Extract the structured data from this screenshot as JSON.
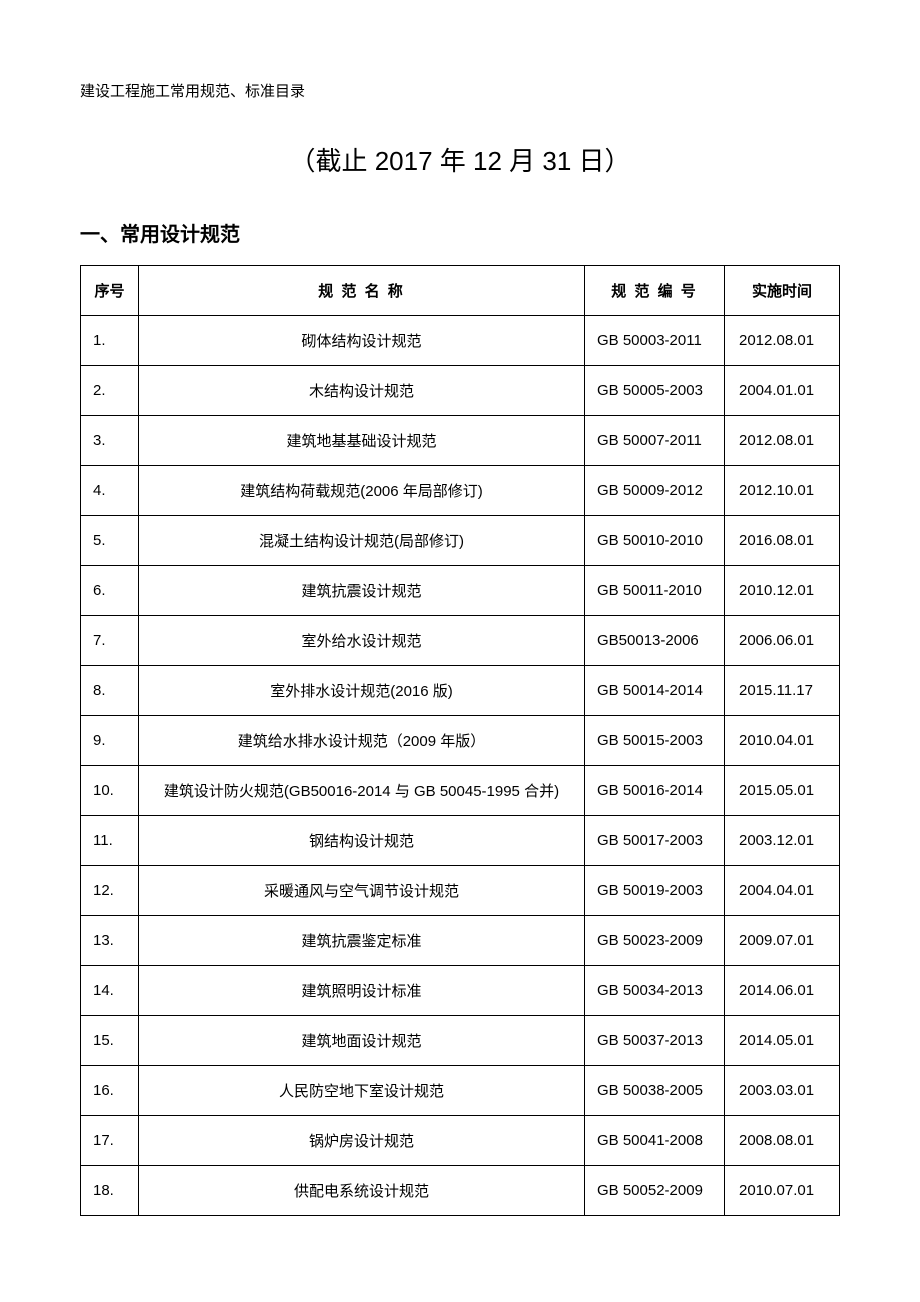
{
  "header_text": "建设工程施工常用规范、标准目录",
  "title": "（截止 2017 年 12 月 31 日）",
  "section_heading": "一、常用设计规范",
  "table": {
    "columns": {
      "seq": "序号",
      "name": "规 范 名 称",
      "code": "规 范 编 号",
      "date": "实施时间"
    },
    "rows": [
      {
        "seq": "1.",
        "name": "砌体结构设计规范",
        "code": "GB  50003-2011",
        "date": "2012.08.01"
      },
      {
        "seq": "2.",
        "name": "木结构设计规范",
        "code": "GB  50005-2003",
        "date": "2004.01.01"
      },
      {
        "seq": "3.",
        "name": "建筑地基基础设计规范",
        "code": "GB  50007-2011",
        "date": "2012.08.01"
      },
      {
        "seq": "4.",
        "name": "建筑结构荷载规范(2006  年局部修订)",
        "code": "GB  50009-2012",
        "date": "2012.10.01"
      },
      {
        "seq": "5.",
        "name": "混凝土结构设计规范(局部修订)",
        "code": "GB  50010-2010",
        "date": "2016.08.01"
      },
      {
        "seq": "6.",
        "name": "建筑抗震设计规范",
        "code": "GB  50011-2010",
        "date": "2010.12.01"
      },
      {
        "seq": "7.",
        "name": "室外给水设计规范",
        "code": "GB50013-2006",
        "date": "2006.06.01"
      },
      {
        "seq": "8.",
        "name": "室外排水设计规范(2016 版)",
        "code": "GB  50014-2014",
        "date": "2015.11.17"
      },
      {
        "seq": "9.",
        "name": "建筑给水排水设计规范（2009 年版）",
        "code": "GB  50015-2003",
        "date": "2010.04.01"
      },
      {
        "seq": "10.",
        "name": "建筑设计防火规范(GB50016-2014 与 GB   50045-1995 合并)",
        "code": "GB  50016-2014",
        "date": "2015.05.01"
      },
      {
        "seq": "11.",
        "name": "钢结构设计规范",
        "code": "GB  50017-2003",
        "date": "2003.12.01"
      },
      {
        "seq": "12.",
        "name": "采暖通风与空气调节设计规范",
        "code": "GB  50019-2003",
        "date": "2004.04.01"
      },
      {
        "seq": "13.",
        "name": "建筑抗震鉴定标准",
        "code": "GB  50023-2009",
        "date": "2009.07.01"
      },
      {
        "seq": "14.",
        "name": "建筑照明设计标准",
        "code": "GB  50034-2013",
        "date": "2014.06.01"
      },
      {
        "seq": "15.",
        "name": "建筑地面设计规范",
        "code": "GB  50037-2013",
        "date": "2014.05.01"
      },
      {
        "seq": "16.",
        "name": "人民防空地下室设计规范",
        "code": "GB  50038-2005",
        "date": "2003.03.01"
      },
      {
        "seq": "17.",
        "name": "锅炉房设计规范",
        "code": "GB  50041-2008",
        "date": "2008.08.01"
      },
      {
        "seq": "18.",
        "name": "供配电系统设计规范",
        "code": "GB  50052-2009",
        "date": "2010.07.01"
      }
    ]
  }
}
